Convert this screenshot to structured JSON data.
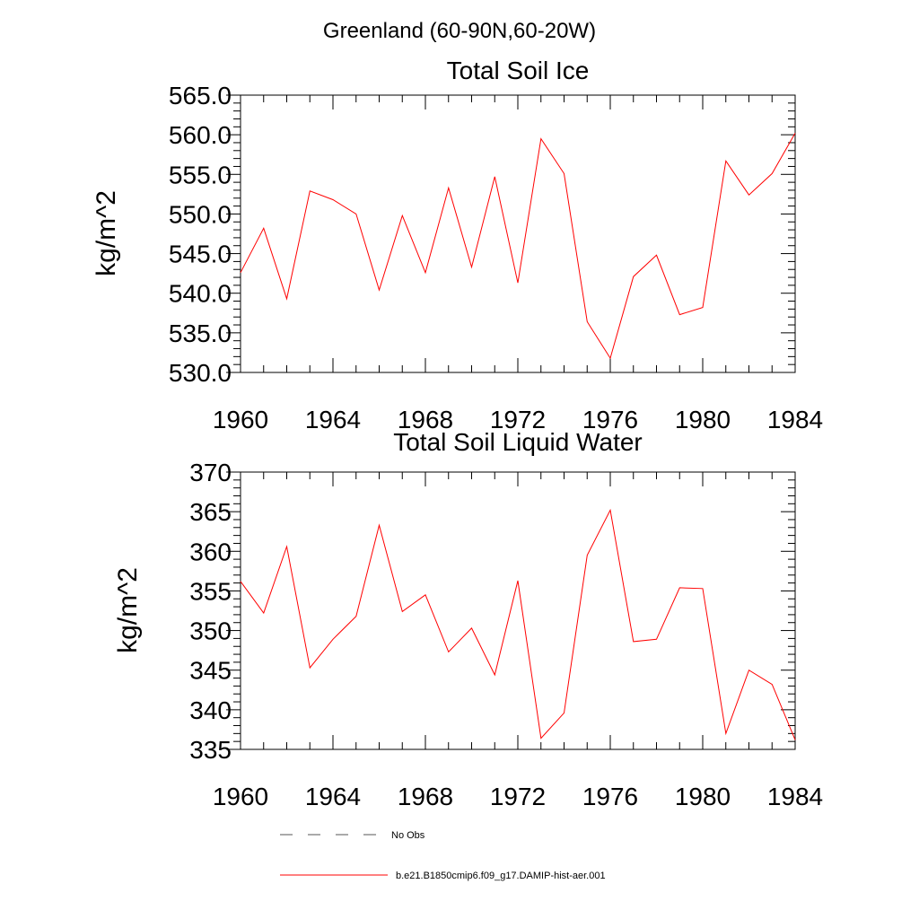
{
  "figure": {
    "suptitle": "Greenland (60-90N,60-20W)"
  },
  "chart_data": [
    {
      "type": "line",
      "title": "Total Soil Ice",
      "ylabel": "kg/m^2",
      "xlabel": "",
      "xlim": [
        1960,
        1984
      ],
      "ylim": [
        530,
        565
      ],
      "xticks": [
        1960,
        1964,
        1968,
        1972,
        1976,
        1980,
        1984
      ],
      "xtick_labels": [
        "1960",
        "1964",
        "1968",
        "1972",
        "1976",
        "1980",
        "1984"
      ],
      "yticks": [
        530,
        535,
        540,
        545,
        550,
        555,
        560,
        565
      ],
      "ytick_labels": [
        "530.0",
        "535.0",
        "540.0",
        "545.0",
        "550.0",
        "555.0",
        "560.0",
        "565.0"
      ],
      "grid": false,
      "x": [
        1960,
        1961,
        1962,
        1963,
        1964,
        1965,
        1966,
        1967,
        1968,
        1969,
        1970,
        1971,
        1972,
        1973,
        1974,
        1975,
        1976,
        1977,
        1978,
        1979,
        1980,
        1981,
        1982,
        1983,
        1984
      ],
      "series": [
        {
          "name": "b.e21.B1850cmip6.f09_g17.DAMIP-hist-aer.001",
          "color": "#ff0000",
          "values": [
            542.6,
            548.2,
            539.3,
            552.9,
            551.8,
            550.0,
            540.4,
            549.8,
            542.6,
            553.3,
            543.3,
            554.7,
            541.3,
            559.5,
            555.1,
            536.4,
            531.8,
            542.1,
            544.8,
            537.3,
            538.2,
            556.7,
            552.4,
            555.1,
            560.2
          ]
        }
      ]
    },
    {
      "type": "line",
      "title": "Total Soil Liquid Water",
      "ylabel": "kg/m^2",
      "xlabel": "",
      "xlim": [
        1960,
        1984
      ],
      "ylim": [
        335,
        370
      ],
      "xticks": [
        1960,
        1964,
        1968,
        1972,
        1976,
        1980,
        1984
      ],
      "xtick_labels": [
        "1960",
        "1964",
        "1968",
        "1972",
        "1976",
        "1980",
        "1984"
      ],
      "yticks": [
        335,
        340,
        345,
        350,
        355,
        360,
        365,
        370
      ],
      "ytick_labels": [
        "335",
        "340",
        "345",
        "350",
        "355",
        "360",
        "365",
        "370"
      ],
      "grid": false,
      "x": [
        1960,
        1961,
        1962,
        1963,
        1964,
        1965,
        1966,
        1967,
        1968,
        1969,
        1970,
        1971,
        1972,
        1973,
        1974,
        1975,
        1976,
        1977,
        1978,
        1979,
        1980,
        1981,
        1982,
        1983,
        1984
      ],
      "series": [
        {
          "name": "b.e21.B1850cmip6.f09_g17.DAMIP-hist-aer.001",
          "color": "#ff0000",
          "values": [
            356.2,
            352.2,
            360.6,
            345.3,
            348.9,
            351.8,
            363.3,
            352.4,
            354.5,
            347.3,
            350.3,
            344.4,
            356.3,
            336.4,
            339.6,
            359.5,
            365.2,
            348.6,
            348.9,
            355.4,
            355.3,
            337.0,
            345.0,
            343.2,
            336.2
          ]
        }
      ]
    }
  ],
  "legend": {
    "placement": "bottom",
    "entries": [
      {
        "label": "No Obs",
        "style": "dashed",
        "color": "#555555"
      },
      {
        "label": "b.e21.B1850cmip6.f09_g17.DAMIP-hist-aer.001",
        "style": "solid",
        "color": "#ff0000"
      }
    ]
  }
}
